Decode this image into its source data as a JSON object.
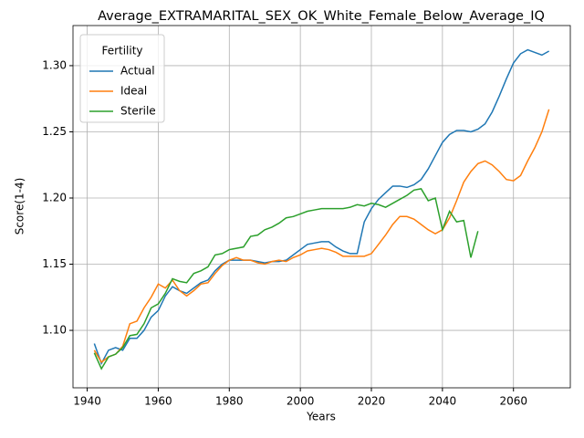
{
  "chart_data": {
    "type": "line",
    "title": "Average_EXTRAMARITAL_SEX_OK_White_Female_Below_Average_IQ",
    "x_label": "Years",
    "y_label": "Score(1-4)",
    "legend_title": "Fertility",
    "legend_position": "upper left",
    "grid": true,
    "x": [
      1942,
      1944,
      1946,
      1948,
      1950,
      1952,
      1954,
      1956,
      1958,
      1960,
      1962,
      1964,
      1966,
      1968,
      1970,
      1972,
      1974,
      1976,
      1978,
      1980,
      1982,
      1984,
      1986,
      1988,
      1990,
      1992,
      1994,
      1996,
      1998,
      2000,
      2002,
      2004,
      2006,
      2008,
      2010,
      2012,
      2014,
      2016,
      2018,
      2020,
      2022,
      2024,
      2026,
      2028,
      2030,
      2032,
      2034,
      2036,
      2038,
      2040,
      2042,
      2044,
      2046,
      2048,
      2050,
      2052,
      2054,
      2056,
      2058,
      2060,
      2062,
      2064,
      2066,
      2068,
      2070
    ],
    "series": [
      {
        "name": "Actual",
        "color": "#1f77b4",
        "values": [
          1.09,
          1.075,
          1.085,
          1.087,
          1.085,
          1.094,
          1.094,
          1.1,
          1.11,
          1.115,
          1.126,
          1.133,
          1.13,
          1.128,
          1.132,
          1.136,
          1.138,
          1.145,
          1.15,
          1.153,
          1.153,
          1.153,
          1.153,
          1.152,
          1.151,
          1.152,
          1.152,
          1.153,
          1.157,
          1.161,
          1.165,
          1.166,
          1.167,
          1.167,
          1.163,
          1.16,
          1.158,
          1.158,
          1.182,
          1.192,
          1.199,
          1.204,
          1.209,
          1.209,
          1.208,
          1.21,
          1.214,
          1.222,
          1.232,
          1.242,
          1.248,
          1.251,
          1.251,
          1.25,
          1.252,
          1.256,
          1.265,
          1.277,
          1.29,
          1.302,
          1.309,
          1.312,
          1.31,
          1.308,
          1.311
        ]
      },
      {
        "name": "Ideal",
        "color": "#ff7f0e",
        "values": [
          1.085,
          1.076,
          1.08,
          1.082,
          1.088,
          1.105,
          1.107,
          1.117,
          1.125,
          1.135,
          1.132,
          1.138,
          1.13,
          1.126,
          1.13,
          1.135,
          1.136,
          1.143,
          1.149,
          1.153,
          1.155,
          1.153,
          1.153,
          1.151,
          1.15,
          1.152,
          1.153,
          1.152,
          1.155,
          1.157,
          1.16,
          1.161,
          1.162,
          1.161,
          1.159,
          1.156,
          1.156,
          1.156,
          1.156,
          1.158,
          1.165,
          1.172,
          1.18,
          1.186,
          1.186,
          1.184,
          1.18,
          1.176,
          1.173,
          1.176,
          1.185,
          1.198,
          1.212,
          1.22,
          1.226,
          1.228,
          1.225,
          1.22,
          1.214,
          1.213,
          1.217,
          1.228,
          1.238,
          1.25,
          1.267
        ]
      },
      {
        "name": "Sterile",
        "color": "#2ca02c",
        "values": [
          1.083,
          1.071,
          1.08,
          1.082,
          1.087,
          1.096,
          1.097,
          1.105,
          1.117,
          1.12,
          1.128,
          1.139,
          1.137,
          1.136,
          1.143,
          1.145,
          1.148,
          1.157,
          1.158,
          1.161,
          1.162,
          1.163,
          1.171,
          1.172,
          1.176,
          1.178,
          1.181,
          1.185,
          1.186,
          1.188,
          1.19,
          1.191,
          1.192,
          1.192,
          1.192,
          1.192,
          1.193,
          1.195,
          1.194,
          1.196,
          1.195,
          1.193,
          1.196,
          1.199,
          1.202,
          1.206,
          1.207,
          1.198,
          1.2,
          1.176,
          1.19,
          1.182,
          1.183,
          1.155,
          1.175,
          null,
          null,
          null,
          null,
          null,
          null,
          null,
          null,
          null,
          null
        ]
      }
    ],
    "xlim": [
      1936,
      2076
    ],
    "xticks": [
      1940,
      1960,
      1980,
      2000,
      2020,
      2040,
      2060
    ],
    "ylim": [
      1.0566,
      1.3303
    ],
    "yticks": [
      {
        "value": 1.1,
        "label": "1.10"
      },
      1.15,
      {
        "value": 1.2,
        "label": "1.20"
      },
      1.25,
      {
        "value": 1.3,
        "label": "1.30"
      }
    ]
  }
}
